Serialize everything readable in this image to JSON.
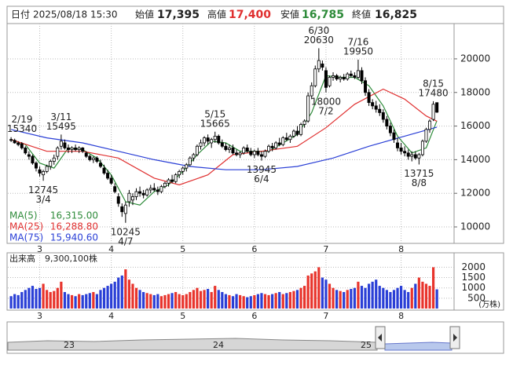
{
  "header": {
    "date_label": "日付",
    "datetime": "2025/08/18 15:30",
    "open_label": "始値",
    "open": {
      "value": 17395,
      "label": "17,395"
    },
    "high_label": "高値",
    "high": {
      "value": 17400,
      "label": "17,400"
    },
    "low_label": "安値",
    "low": {
      "value": 16785,
      "label": "16,785"
    },
    "close_label": "終値",
    "close": {
      "value": 16825,
      "label": "16,825"
    }
  },
  "chart_data": {
    "type": "candlestick",
    "up_color": "#ffffff",
    "down_color": "#000000",
    "volume_up_color": "#e8342c",
    "volume_down_color": "#2a3fd6",
    "xlim": [
      -0.9,
      123.8
    ],
    "ylim": [
      9020,
      22100
    ],
    "yticks": [
      10000,
      12000,
      14000,
      16000,
      18000,
      20000
    ],
    "xticks": [
      {
        "value": 8,
        "label": "3"
      },
      {
        "value": 28,
        "label": "4"
      },
      {
        "value": 48,
        "label": "5"
      },
      {
        "value": 68,
        "label": "6"
      },
      {
        "value": 88,
        "label": "7"
      },
      {
        "value": 109,
        "label": "8"
      }
    ],
    "grid": true,
    "candles": [
      [
        15200,
        15340,
        15050,
        15150
      ],
      [
        15150,
        15250,
        14950,
        15000
      ],
      [
        15000,
        15100,
        14800,
        14900
      ],
      [
        14950,
        15050,
        14600,
        14700
      ],
      [
        14700,
        14800,
        14300,
        14400
      ],
      [
        14300,
        14500,
        14000,
        14200
      ],
      [
        14200,
        14300,
        13700,
        13800
      ],
      [
        13800,
        13900,
        13300,
        13500
      ],
      [
        13400,
        13600,
        13000,
        13200
      ],
      [
        13100,
        13400,
        12745,
        13300
      ],
      [
        13300,
        13700,
        13200,
        13600
      ],
      [
        13600,
        14000,
        13400,
        13900
      ],
      [
        13900,
        14300,
        13700,
        14100
      ],
      [
        14200,
        14800,
        14000,
        14700
      ],
      [
        14800,
        15495,
        14600,
        15100
      ],
      [
        15000,
        15200,
        14600,
        14700
      ],
      [
        14700,
        14900,
        14400,
        14600
      ],
      [
        14600,
        14800,
        14400,
        14700
      ],
      [
        14700,
        14900,
        14500,
        14600
      ],
      [
        14600,
        14800,
        14400,
        14700
      ],
      [
        14700,
        14750,
        14400,
        14500
      ],
      [
        14400,
        14500,
        14100,
        14200
      ],
      [
        14200,
        14300,
        13900,
        14000
      ],
      [
        14000,
        14200,
        13800,
        14100
      ],
      [
        14100,
        14200,
        13800,
        13900
      ],
      [
        13800,
        14000,
        13500,
        13600
      ],
      [
        13500,
        13700,
        13100,
        13200
      ],
      [
        13200,
        13400,
        12800,
        12900
      ],
      [
        12900,
        13100,
        12500,
        12600
      ],
      [
        12400,
        12600,
        12000,
        12100
      ],
      [
        11800,
        12000,
        11200,
        11400
      ],
      [
        11200,
        11400,
        10600,
        10900
      ],
      [
        10800,
        11500,
        10245,
        11300
      ],
      [
        11500,
        12200,
        11200,
        12000
      ],
      [
        11600,
        12000,
        11300,
        11800
      ],
      [
        11800,
        12300,
        11600,
        12100
      ],
      [
        12100,
        12400,
        11800,
        12000
      ],
      [
        12000,
        12200,
        11700,
        11900
      ],
      [
        11900,
        12300,
        11800,
        12200
      ],
      [
        12200,
        12500,
        12000,
        12300
      ],
      [
        12300,
        12600,
        12100,
        12200
      ],
      [
        12200,
        12400,
        11900,
        12100
      ],
      [
        12100,
        12500,
        12000,
        12400
      ],
      [
        12400,
        12700,
        12300,
        12600
      ],
      [
        12600,
        12900,
        12400,
        12800
      ],
      [
        12800,
        13100,
        12600,
        12700
      ],
      [
        12700,
        13200,
        12600,
        13100
      ],
      [
        13100,
        13400,
        12900,
        13300
      ],
      [
        13300,
        13600,
        13100,
        13500
      ],
      [
        13500,
        13800,
        13300,
        13700
      ],
      [
        13700,
        14200,
        13600,
        14100
      ],
      [
        14100,
        14400,
        13900,
        14300
      ],
      [
        14300,
        14900,
        14200,
        14800
      ],
      [
        14800,
        15200,
        14600,
        15000
      ],
      [
        15000,
        15400,
        14800,
        15300
      ],
      [
        15300,
        15500,
        14900,
        15100
      ],
      [
        15000,
        15300,
        14700,
        15200
      ],
      [
        15200,
        15665,
        15000,
        15400
      ],
      [
        15400,
        15500,
        14900,
        15000
      ],
      [
        15000,
        15200,
        14700,
        14800
      ],
      [
        14800,
        15000,
        14500,
        14600
      ],
      [
        14600,
        14900,
        14400,
        14700
      ],
      [
        14700,
        14900,
        14300,
        14400
      ],
      [
        14400,
        14600,
        14200,
        14300
      ],
      [
        14300,
        14500,
        14100,
        14400
      ],
      [
        14400,
        14800,
        14300,
        14700
      ],
      [
        14700,
        14900,
        14400,
        14500
      ],
      [
        14500,
        14700,
        14200,
        14300
      ],
      [
        14300,
        14600,
        14100,
        14500
      ],
      [
        14500,
        14700,
        14200,
        14300
      ],
      [
        14300,
        14500,
        13945,
        14200
      ],
      [
        14200,
        14600,
        14100,
        14500
      ],
      [
        14500,
        14900,
        14400,
        14800
      ],
      [
        14800,
        15000,
        14500,
        14700
      ],
      [
        14700,
        15100,
        14600,
        15000
      ],
      [
        15000,
        15300,
        14800,
        14900
      ],
      [
        14900,
        15400,
        14800,
        15300
      ],
      [
        15300,
        15600,
        15100,
        15200
      ],
      [
        15200,
        15500,
        15000,
        15400
      ],
      [
        15400,
        15800,
        15300,
        15700
      ],
      [
        15700,
        16000,
        15400,
        15500
      ],
      [
        15500,
        16200,
        15400,
        16100
      ],
      [
        16100,
        16400,
        15900,
        16300
      ],
      [
        16300,
        18000,
        16200,
        17800
      ],
      [
        17800,
        18600,
        17600,
        18400
      ],
      [
        18400,
        19600,
        18300,
        19400
      ],
      [
        19400,
        20630,
        19200,
        19900
      ],
      [
        19700,
        19900,
        19300,
        19500
      ],
      [
        19300,
        19500,
        18000,
        18300
      ],
      [
        18400,
        19000,
        18300,
        18900
      ],
      [
        18900,
        19200,
        18700,
        19000
      ],
      [
        19000,
        19100,
        18700,
        18800
      ],
      [
        18800,
        19000,
        18600,
        18900
      ],
      [
        18900,
        19100,
        18700,
        18800
      ],
      [
        18800,
        19200,
        18700,
        19100
      ],
      [
        19100,
        19300,
        18900,
        19000
      ],
      [
        19000,
        19200,
        18800,
        18900
      ],
      [
        18900,
        19950,
        18800,
        19300
      ],
      [
        19300,
        19500,
        18500,
        18700
      ],
      [
        18700,
        18900,
        17800,
        18000
      ],
      [
        18000,
        18200,
        17200,
        17400
      ],
      [
        17400,
        17600,
        17000,
        17200
      ],
      [
        17200,
        17500,
        16800,
        17000
      ],
      [
        17000,
        17300,
        16600,
        16800
      ],
      [
        16800,
        17000,
        16200,
        16400
      ],
      [
        16400,
        16600,
        15800,
        16000
      ],
      [
        16000,
        16200,
        15400,
        15600
      ],
      [
        15600,
        15800,
        15000,
        15200
      ],
      [
        15000,
        15300,
        14500,
        14700
      ],
      [
        14700,
        15000,
        14300,
        14500
      ],
      [
        14500,
        14800,
        14200,
        14400
      ],
      [
        14400,
        14600,
        14000,
        14200
      ],
      [
        14200,
        14500,
        13900,
        14300
      ],
      [
        14300,
        14500,
        14000,
        14100
      ],
      [
        14100,
        14400,
        13715,
        14300
      ],
      [
        14300,
        15200,
        14200,
        15100
      ],
      [
        15100,
        15900,
        15000,
        15800
      ],
      [
        15800,
        16400,
        15600,
        16300
      ],
      [
        16400,
        17480,
        16300,
        17300
      ],
      [
        17395,
        17400,
        16785,
        16825
      ]
    ],
    "annotations": [
      {
        "date": "2/19",
        "value": 15340,
        "x": 0,
        "side": "high"
      },
      {
        "date": "3/4",
        "value": 12745,
        "x": 9,
        "side": "low"
      },
      {
        "date": "3/11",
        "value": 15495,
        "x": 14,
        "side": "high"
      },
      {
        "date": "4/7",
        "value": 10245,
        "x": 32,
        "side": "low"
      },
      {
        "date": "5/15",
        "value": 15665,
        "x": 57,
        "side": "high"
      },
      {
        "date": "6/4",
        "value": 13945,
        "x": 70,
        "side": "low"
      },
      {
        "date": "6/30",
        "value": 20630,
        "x": 86,
        "side": "high"
      },
      {
        "date": "7/2",
        "value": 18000,
        "x": 88,
        "side": "low"
      },
      {
        "date": "7/16",
        "value": 19950,
        "x": 97,
        "side": "high"
      },
      {
        "date": "8/8",
        "value": 13715,
        "x": 114,
        "side": "low"
      },
      {
        "date": "8/15",
        "value": 17480,
        "x": 118,
        "side": "high"
      }
    ],
    "ma_lines": [
      {
        "name": "MA(5)",
        "color": "#2e8b3a",
        "last": {
          "value": 16315,
          "label": "16,315.00"
        },
        "x": [
          0,
          4,
          8,
          12,
          16,
          20,
          24,
          28,
          32,
          36,
          40,
          44,
          48,
          52,
          56,
          60,
          64,
          68,
          72,
          76,
          80,
          84,
          88,
          92,
          96,
          100,
          104,
          108,
          112,
          116,
          119
        ],
        "values": [
          15200,
          14900,
          13800,
          13500,
          14700,
          14600,
          14100,
          13100,
          11500,
          11300,
          12100,
          12500,
          13300,
          14300,
          15100,
          15000,
          14500,
          14500,
          14500,
          15000,
          15500,
          16800,
          19000,
          18900,
          18900,
          18400,
          17200,
          15400,
          14400,
          14700,
          16315
        ]
      },
      {
        "name": "MA(25)",
        "color": "#e03030",
        "last": {
          "value": 16288.8,
          "label": "16,288.80"
        },
        "x": [
          0,
          10,
          20,
          30,
          40,
          47,
          55,
          62,
          70,
          80,
          88,
          96,
          104,
          110,
          116,
          119
        ],
        "values": [
          15200,
          14500,
          14500,
          14100,
          12900,
          12500,
          13100,
          14300,
          14500,
          14800,
          15900,
          17300,
          18200,
          17600,
          16600,
          16288.8
        ]
      },
      {
        "name": "MA(75)",
        "color": "#2a3fd6",
        "last": {
          "value": 15940.6,
          "label": "15,940.60"
        },
        "x": [
          0,
          10,
          20,
          30,
          40,
          50,
          60,
          70,
          80,
          90,
          100,
          110,
          119
        ],
        "values": [
          15800,
          15300,
          15000,
          14500,
          14000,
          13600,
          13400,
          13400,
          13600,
          14100,
          14800,
          15400,
          15940.6
        ]
      }
    ],
    "volume": {
      "title": "出来高",
      "last": {
        "value": 9300100,
        "label": "9,300,100株"
      },
      "unit": "(万株)",
      "ylim": [
        0,
        2700
      ],
      "yticks": [
        500,
        1000,
        1500,
        2000
      ],
      "values": [
        600,
        700,
        650,
        800,
        900,
        1000,
        1100,
        950,
        1000,
        1200,
        900,
        800,
        850,
        1000,
        1300,
        800,
        700,
        650,
        600,
        700,
        650,
        700,
        750,
        800,
        700,
        900,
        1000,
        1100,
        1200,
        1300,
        1500,
        1600,
        1900,
        1400,
        1200,
        1000,
        900,
        800,
        750,
        700,
        650,
        700,
        600,
        650,
        700,
        750,
        800,
        700,
        650,
        700,
        800,
        900,
        1000,
        850,
        900,
        950,
        800,
        1100,
        900,
        800,
        700,
        650,
        600,
        700,
        650,
        600,
        550,
        600,
        650,
        700,
        750,
        700,
        650,
        700,
        750,
        800,
        700,
        750,
        800,
        850,
        900,
        1000,
        1100,
        1600,
        1700,
        1800,
        2000,
        1500,
        1400,
        1200,
        1000,
        900,
        850,
        800,
        900,
        950,
        1000,
        1300,
        1100,
        1000,
        1200,
        1300,
        1400,
        1100,
        1000,
        900,
        800,
        900,
        1000,
        1100,
        900,
        800,
        1000,
        1200,
        1500,
        1300,
        1200,
        1100,
        2000,
        930
      ]
    },
    "navigator": {
      "labels": [
        "23",
        "24",
        "25"
      ]
    }
  }
}
